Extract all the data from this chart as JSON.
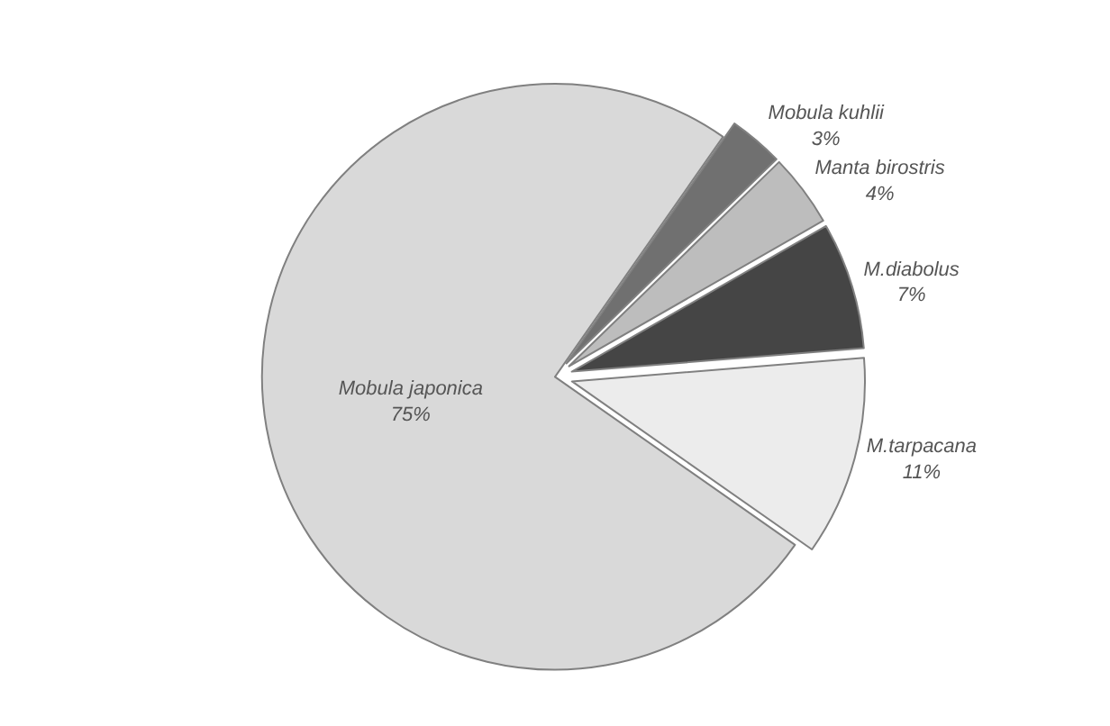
{
  "chart_data": {
    "type": "pie",
    "categories": [
      "Mobula kuhlii",
      "Manta birostris",
      "M.diabolus",
      "M.tarpacana",
      "Mobula japonica"
    ],
    "values": [
      3,
      4,
      7,
      11,
      75
    ],
    "value_labels": [
      "3%",
      "4%",
      "7%",
      "11%",
      "75%"
    ],
    "colors": [
      "#707070",
      "#bdbdbd",
      "#454545",
      "#ececec",
      "#d9d9d9"
    ],
    "legend": false
  }
}
